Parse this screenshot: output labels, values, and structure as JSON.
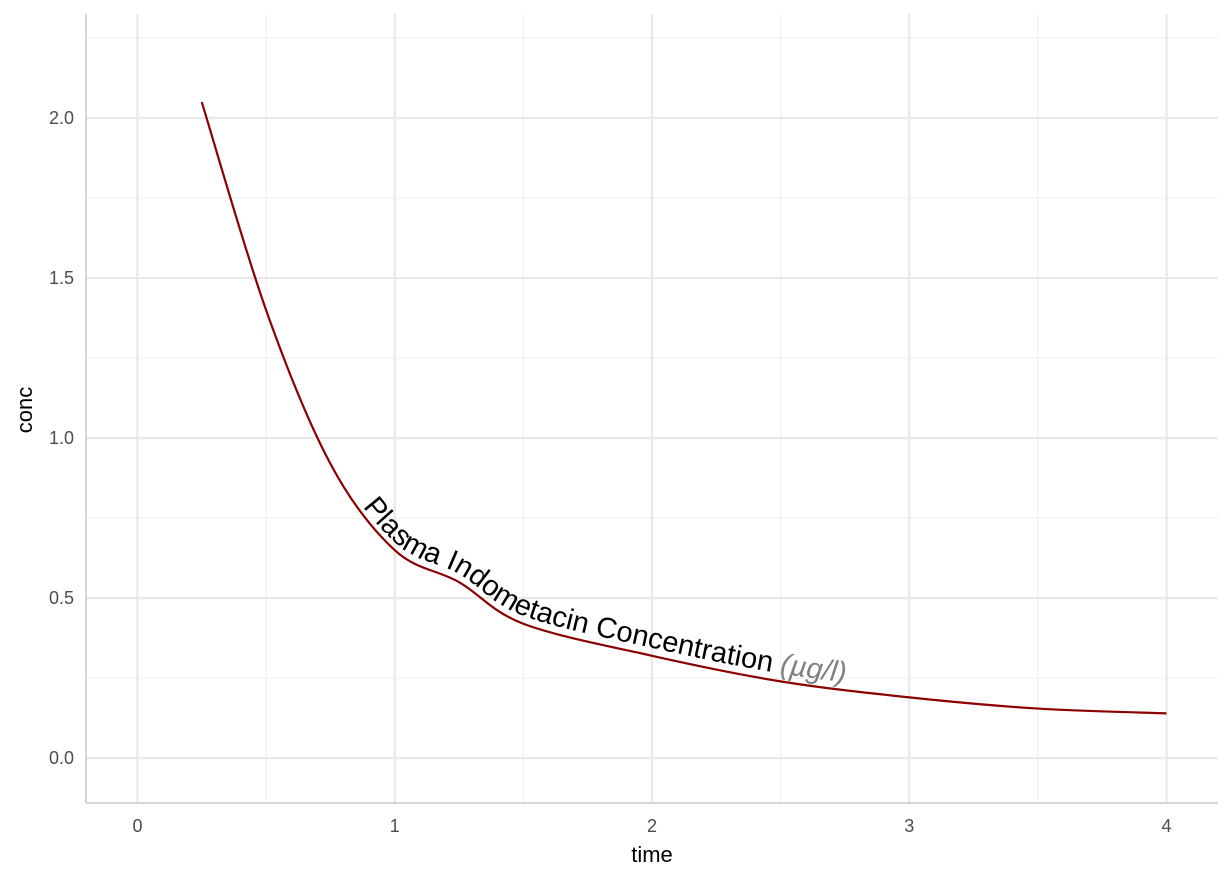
{
  "chart_data": {
    "type": "line",
    "label": "Plasma Indometacin Concentration",
    "label_units": "(µg/l)",
    "x_label": "time",
    "y_label": "conc",
    "x": [
      0.25,
      0.5,
      0.75,
      1,
      1.25,
      1.5,
      2,
      2.5,
      3,
      3.5,
      4
    ],
    "series": [
      {
        "color": "#8b0000",
        "values": [
          2.05,
          1.4,
          0.92,
          0.65,
          0.55,
          0.42,
          0.32,
          0.24,
          0.19,
          0.155,
          0.14
        ]
      }
    ],
    "xlim": [
      -0.2,
      4.2
    ],
    "ylim": [
      -0.14,
      2.325
    ],
    "xticks": [
      0,
      1,
      2,
      3,
      4
    ],
    "yticks": [
      {
        "value": 0,
        "label": "0.0"
      },
      {
        "value": 0.5,
        "label": "0.5"
      },
      {
        "value": 1,
        "label": "1.0"
      },
      {
        "value": 1.5,
        "label": "1.5"
      },
      {
        "value": 2,
        "label": "2.0"
      }
    ],
    "x_minor_breaks": [
      0.5,
      1.5,
      2.5,
      3.5
    ],
    "y_minor_breaks": [
      0.25,
      0.75,
      1.25,
      1.75,
      2.25
    ],
    "grid": true
  }
}
